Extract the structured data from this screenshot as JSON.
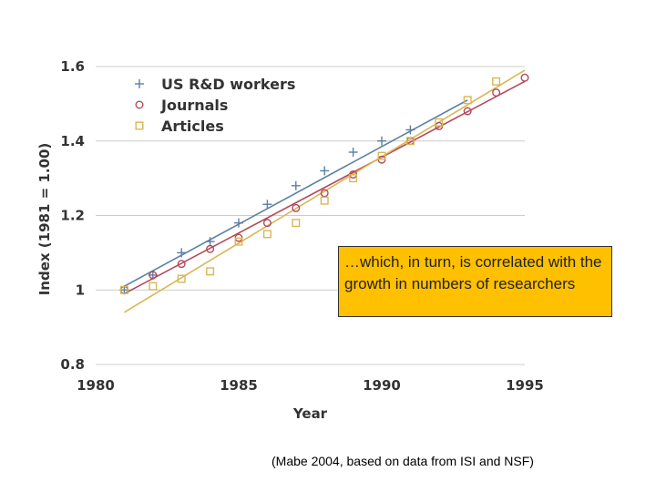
{
  "chart_data": {
    "type": "scatter",
    "xlabel": "Year",
    "ylabel": "Index (1981 = 1.00)",
    "xlim": [
      1980,
      1995
    ],
    "ylim": [
      0.8,
      1.6
    ],
    "x_ticks": [
      "1980",
      "1985",
      "1990",
      "1995"
    ],
    "y_ticks": [
      "0.8",
      "1",
      "1.2",
      "1.4",
      "1.6"
    ],
    "grid": "horizontal",
    "legend_position": "top-left",
    "series": [
      {
        "name": "US R&D workers",
        "marker": "plus",
        "color": "#5b7fa6",
        "x": [
          1981,
          1982,
          1983,
          1984,
          1985,
          1986,
          1987,
          1988,
          1989,
          1990,
          1991
        ],
        "y": [
          1.0,
          1.04,
          1.1,
          1.13,
          1.18,
          1.23,
          1.28,
          1.32,
          1.37,
          1.4,
          1.43
        ],
        "trend": [
          [
            1981,
            1.01
          ],
          [
            1993,
            1.51
          ]
        ]
      },
      {
        "name": "Journals",
        "marker": "circle",
        "color": "#b24a5a",
        "x": [
          1981,
          1982,
          1983,
          1984,
          1985,
          1986,
          1987,
          1988,
          1989,
          1990,
          1991,
          1992,
          1993,
          1994,
          1995
        ],
        "y": [
          1.0,
          1.04,
          1.07,
          1.11,
          1.14,
          1.18,
          1.22,
          1.26,
          1.31,
          1.35,
          1.4,
          1.44,
          1.48,
          1.53,
          1.57
        ],
        "trend": [
          [
            1981,
            0.99
          ],
          [
            1995,
            1.56
          ]
        ]
      },
      {
        "name": "Articles",
        "marker": "square",
        "color": "#d9b655",
        "x": [
          1981,
          1982,
          1983,
          1984,
          1985,
          1986,
          1987,
          1988,
          1989,
          1990,
          1991,
          1992,
          1993,
          1994
        ],
        "y": [
          1.0,
          1.01,
          1.03,
          1.05,
          1.13,
          1.15,
          1.18,
          1.24,
          1.3,
          1.36,
          1.4,
          1.45,
          1.51,
          1.56
        ],
        "trend": [
          [
            1981,
            0.94
          ],
          [
            1995,
            1.59
          ]
        ]
      }
    ]
  },
  "callout": {
    "text": "…which, in turn, is correlated with the growth in numbers of researchers"
  },
  "citation": {
    "text": "(Mabe 2004, based on data from ISI and NSF)"
  },
  "colors": {
    "callout_bg": "#FFC000",
    "grid": "#cccccc"
  }
}
